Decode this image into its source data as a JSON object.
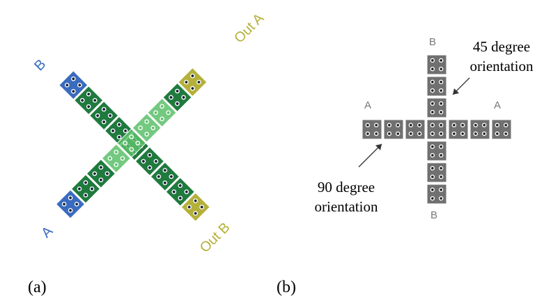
{
  "panel_a": {
    "labels": {
      "top_left": "B",
      "top_right": "Out A",
      "bottom_left": "A",
      "bottom_right": "Out B"
    },
    "caption": "(a)"
  },
  "panel_b": {
    "labels": {
      "top": "B",
      "bottom": "B",
      "left": "A",
      "right": "A"
    },
    "note_45": [
      "45 degree",
      "orientation"
    ],
    "note_90": [
      "90 degree",
      "orientation"
    ],
    "caption": "(b)"
  }
}
